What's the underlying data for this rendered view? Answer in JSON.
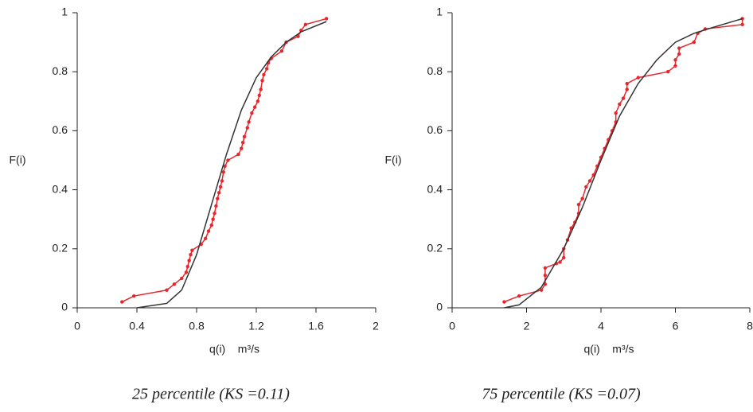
{
  "chart_data": [
    {
      "type": "line",
      "caption": "25 percentile (KS =0.11)",
      "x_label": "q(i)    m³/s",
      "y_label": "F(i)",
      "xlim": [
        0,
        2
      ],
      "xticks": [
        0,
        0.4,
        0.8,
        1.2,
        1.6,
        2
      ],
      "ylim": [
        0,
        1
      ],
      "yticks": [
        0,
        0.2,
        0.4,
        0.6,
        0.8,
        1
      ],
      "series": [
        {
          "color": "#e8262b",
          "markers": true,
          "x": [
            0.3,
            0.38,
            0.6,
            0.65,
            0.7,
            0.73,
            0.74,
            0.75,
            0.76,
            0.77,
            0.83,
            0.86,
            0.88,
            0.9,
            0.91,
            0.92,
            0.93,
            0.94,
            0.95,
            0.96,
            0.97,
            0.98,
            0.99,
            1.01,
            1.08,
            1.1,
            1.11,
            1.12,
            1.14,
            1.15,
            1.17,
            1.19,
            1.21,
            1.22,
            1.23,
            1.24,
            1.25,
            1.27,
            1.28,
            1.3,
            1.37,
            1.4,
            1.48,
            1.5,
            1.53,
            1.67
          ],
          "values": [
            0.02,
            0.04,
            0.06,
            0.08,
            0.1,
            0.12,
            0.14,
            0.16,
            0.18,
            0.195,
            0.215,
            0.235,
            0.26,
            0.28,
            0.3,
            0.32,
            0.345,
            0.37,
            0.39,
            0.41,
            0.43,
            0.46,
            0.48,
            0.5,
            0.52,
            0.54,
            0.56,
            0.58,
            0.61,
            0.63,
            0.66,
            0.68,
            0.7,
            0.72,
            0.74,
            0.77,
            0.79,
            0.81,
            0.83,
            0.845,
            0.87,
            0.9,
            0.92,
            0.94,
            0.96,
            0.98
          ]
        },
        {
          "color": "#333333",
          "markers": false,
          "x": [
            0.4,
            0.6,
            0.7,
            0.8,
            0.9,
            1.0,
            1.1,
            1.2,
            1.3,
            1.4,
            1.5,
            1.67
          ],
          "values": [
            0,
            0.015,
            0.06,
            0.18,
            0.35,
            0.52,
            0.67,
            0.78,
            0.85,
            0.9,
            0.935,
            0.97
          ]
        }
      ]
    },
    {
      "type": "line",
      "caption": "75 percentile (KS =0.07)",
      "x_label": "q(i)    m³/s",
      "y_label": "F(i)",
      "xlim": [
        0,
        8
      ],
      "xticks": [
        0,
        2,
        4,
        6,
        8
      ],
      "ylim": [
        0,
        1
      ],
      "yticks": [
        0,
        0.2,
        0.4,
        0.6,
        0.8,
        1
      ],
      "series": [
        {
          "color": "#e8262b",
          "markers": true,
          "x": [
            1.4,
            1.8,
            2.4,
            2.5,
            2.5,
            2.5,
            2.8,
            2.9,
            3.0,
            3.0,
            3.1,
            3.2,
            3.3,
            3.4,
            3.4,
            3.5,
            3.6,
            3.7,
            3.8,
            3.9,
            4.0,
            4.1,
            4.2,
            4.3,
            4.4,
            4.4,
            4.5,
            4.6,
            4.7,
            4.7,
            5.0,
            5.8,
            6.0,
            6.0,
            6.1,
            6.1,
            6.5,
            6.6,
            6.8,
            7.8,
            7.8
          ],
          "values": [
            0.02,
            0.04,
            0.06,
            0.08,
            0.11,
            0.135,
            0.15,
            0.155,
            0.17,
            0.2,
            0.23,
            0.27,
            0.29,
            0.32,
            0.35,
            0.37,
            0.41,
            0.43,
            0.45,
            0.48,
            0.51,
            0.54,
            0.57,
            0.6,
            0.63,
            0.66,
            0.69,
            0.71,
            0.74,
            0.76,
            0.78,
            0.8,
            0.82,
            0.84,
            0.86,
            0.88,
            0.9,
            0.93,
            0.945,
            0.96,
            0.98
          ]
        },
        {
          "color": "#333333",
          "markers": false,
          "x": [
            1.4,
            1.8,
            2.4,
            3,
            3.5,
            4,
            4.5,
            5,
            5.5,
            6,
            6.5,
            7,
            7.8
          ],
          "values": [
            0,
            0.01,
            0.07,
            0.2,
            0.34,
            0.5,
            0.65,
            0.76,
            0.84,
            0.9,
            0.93,
            0.95,
            0.98
          ]
        }
      ]
    }
  ]
}
